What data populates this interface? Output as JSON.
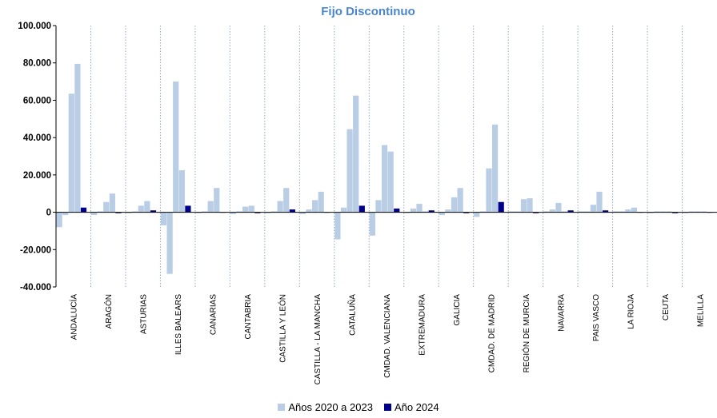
{
  "chart_data": {
    "type": "bar",
    "title": "Fijo  Discontinuo",
    "xlabel": "",
    "ylabel": "",
    "ylim": [
      -40000,
      100000
    ],
    "yticks": [
      -40000,
      -20000,
      0,
      20000,
      40000,
      60000,
      80000,
      100000
    ],
    "ytick_labels": [
      "-40.000",
      "-20.000",
      "0",
      "20.000",
      "40.000",
      "60.000",
      "80.000",
      "100.000"
    ],
    "grid": false,
    "legend_position": "bottom",
    "categories": [
      "ANDALUCÍA",
      "ARAGÓN",
      "ASTURIAS",
      "ILLES BALEARS",
      "CANARIAS",
      "CANTABRIA",
      "CASTILLA Y LEÓN",
      "CASTILLA - LA MANCHA",
      "CATALUÑA",
      "CMDAD. VALENCIANA",
      "EXTREMADURA",
      "GALICIA",
      "CMDAD. DE MADRID",
      "REGIÓN DE MURCIA",
      "NAVARRA",
      "PAIS VASCO",
      "LA RIOJA",
      "CEUTA",
      "MELILLA"
    ],
    "series": [
      {
        "name": "Años 2020 a 2023",
        "color": "#b9cde5",
        "values": [
          [
            -8000,
            -1500,
            63500,
            79500
          ],
          [
            -1500,
            500,
            5500,
            10000
          ],
          [
            -500,
            500,
            3500,
            6000
          ],
          [
            -7000,
            -33000,
            70000,
            22500
          ],
          [
            -500,
            500,
            6000,
            13000
          ],
          [
            -1000,
            500,
            3000,
            3500
          ],
          [
            -500,
            500,
            6000,
            13000
          ],
          [
            -1000,
            1500,
            6500,
            11000
          ],
          [
            -14500,
            2500,
            44500,
            62500
          ],
          [
            -12500,
            6500,
            36000,
            32500
          ],
          [
            -500,
            2000,
            4500,
            500
          ],
          [
            -1500,
            1500,
            8000,
            13000
          ],
          [
            -2500,
            500,
            23500,
            47000
          ],
          [
            500,
            500,
            7000,
            7500
          ],
          [
            500,
            1500,
            5000,
            500
          ],
          [
            500,
            500,
            4000,
            11000
          ],
          [
            500,
            500,
            1500,
            2500
          ],
          [
            -500,
            500,
            500,
            500
          ],
          [
            -500,
            500,
            500,
            500
          ]
        ]
      },
      {
        "name": "Año 2024",
        "color": "#00008b",
        "values": [
          2500,
          -500,
          1000,
          3500,
          0,
          -500,
          1500,
          0,
          3500,
          2000,
          1000,
          -500,
          5500,
          -500,
          1000,
          1000,
          0,
          -500,
          0
        ]
      }
    ]
  }
}
